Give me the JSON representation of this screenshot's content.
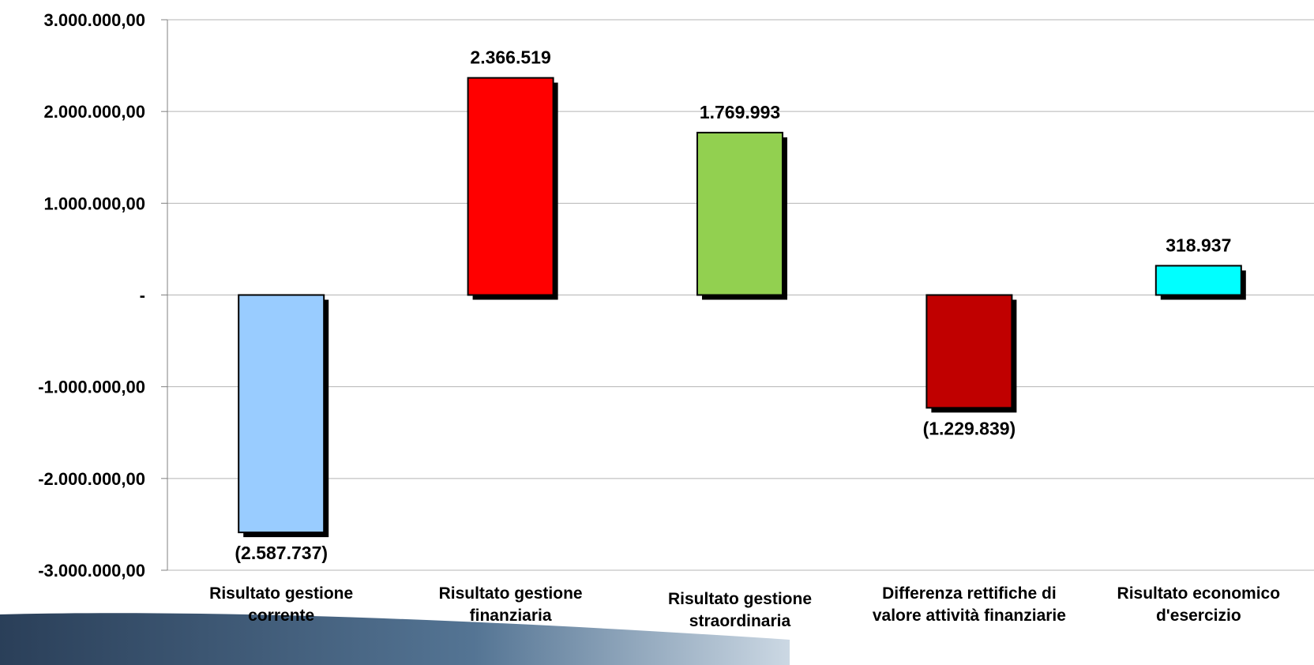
{
  "chart_data": {
    "type": "bar",
    "categories": [
      [
        "Risultato gestione",
        "corrente"
      ],
      [
        "Risultato gestione",
        "finanziaria"
      ],
      [
        "Risultato gestione",
        "straordinaria"
      ],
      [
        "Differenza rettifiche di",
        "valore attività finanziarie"
      ],
      [
        "Risultato economico",
        "d'esercizio"
      ]
    ],
    "values": [
      -2587737,
      2366519,
      1769993,
      -1229839,
      318937
    ],
    "data_labels": [
      "(2.587.737)",
      "2.366.519",
      "1.769.993",
      "(1.229.839)",
      "318.937"
    ],
    "colors": [
      "#99ccff",
      "#ff0000",
      "#92d050",
      "#c00000",
      "#00ffff"
    ],
    "ylim": [
      -3000000,
      3000000
    ],
    "yticks": [
      3000000,
      2000000,
      1000000,
      0,
      -1000000,
      -2000000,
      -3000000
    ],
    "ytick_labels": [
      "3.000.000,00",
      "2.000.000,00",
      "1.000.000,00",
      "-",
      "-1.000.000,00",
      "-2.000.000,00",
      "-3.000.000,00"
    ],
    "grid": true,
    "legend": "none"
  }
}
